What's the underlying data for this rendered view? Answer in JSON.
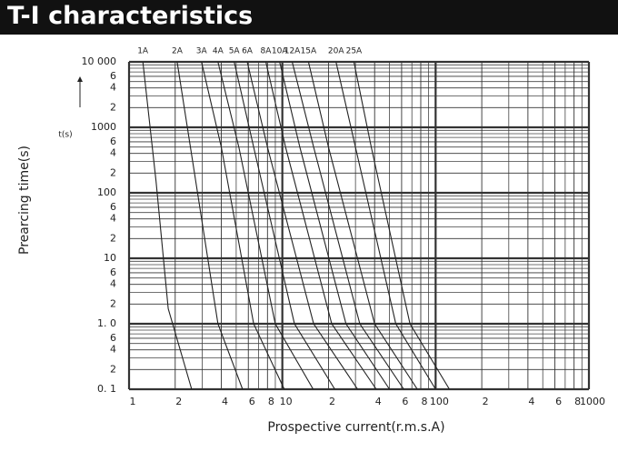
{
  "chart_data": {
    "type": "line",
    "title": "T-I characteristics",
    "y_label": "Prearcing time(s)",
    "y_unit_label": "t(s)",
    "x_label": "Prospective current(r.m.s.A)",
    "log_x": true,
    "log_y": true,
    "grid": true,
    "color": "#222222",
    "xlim": [
      1,
      1000
    ],
    "ylim": [
      0.1,
      10000
    ],
    "xticks": [
      1,
      2,
      4,
      6,
      8,
      10,
      {
        "value": 20,
        "label": "2"
      },
      {
        "value": 40,
        "label": "4"
      },
      {
        "value": 60,
        "label": "6"
      },
      {
        "value": 80,
        "label": "8"
      },
      100,
      {
        "value": 200,
        "label": "2"
      },
      {
        "value": 400,
        "label": "4"
      },
      {
        "value": 600,
        "label": "6"
      },
      {
        "value": 800,
        "label": "8"
      },
      1000
    ],
    "xminor_ticks": [
      3,
      5,
      7,
      9,
      30,
      50,
      70,
      90,
      300,
      500,
      700,
      900
    ],
    "yticks": [
      {
        "value": 10000,
        "label": "10 000"
      },
      {
        "value": 6000,
        "label": "6"
      },
      {
        "value": 4000,
        "label": "4"
      },
      {
        "value": 2000,
        "label": "2"
      },
      1000,
      {
        "value": 600,
        "label": "6"
      },
      {
        "value": 400,
        "label": "4"
      },
      {
        "value": 200,
        "label": "2"
      },
      100,
      {
        "value": 60,
        "label": "6"
      },
      {
        "value": 40,
        "label": "4"
      },
      {
        "value": 20,
        "label": "2"
      },
      10,
      6,
      4,
      2,
      {
        "value": 1,
        "label": "1. 0"
      },
      {
        "value": 0.6,
        "label": "6"
      },
      {
        "value": 0.4,
        "label": "4"
      },
      {
        "value": 0.2,
        "label": "2"
      },
      {
        "value": 0.1,
        "label": "0. 1"
      }
    ],
    "yminor_ticks": [
      9000,
      8000,
      7000,
      5000,
      3000,
      900,
      800,
      700,
      500,
      300,
      90,
      80,
      70,
      50,
      30,
      9,
      8,
      7,
      5,
      3,
      0.9,
      0.8,
      0.7,
      0.5,
      0.3
    ],
    "series": [
      {
        "name": "1A",
        "x": [
          1.23,
          1.5,
          1.8,
          2.56
        ],
        "values": [
          10000,
          150,
          1.7,
          0.1
        ]
      },
      {
        "name": "2A",
        "x": [
          2.06,
          2.6,
          3.8,
          5.5
        ],
        "values": [
          10000,
          300,
          1,
          0.1
        ]
      },
      {
        "name": "3A",
        "x": [
          2.97,
          4,
          6.5,
          10.3
        ],
        "values": [
          10000,
          500,
          1,
          0.1
        ]
      },
      {
        "name": "4A",
        "x": [
          3.8,
          5.2,
          9,
          15.9
        ],
        "values": [
          10000,
          500,
          1,
          0.1
        ]
      },
      {
        "name": "5A",
        "x": [
          4.85,
          6.5,
          12,
          22
        ],
        "values": [
          10000,
          500,
          1,
          0.1
        ]
      },
      {
        "name": "6A",
        "x": [
          5.9,
          8,
          16,
          31
        ],
        "values": [
          10000,
          500,
          1,
          0.1
        ]
      },
      {
        "name": "8A",
        "x": [
          7.8,
          10.5,
          21,
          41
        ],
        "values": [
          10000,
          500,
          1,
          0.1
        ]
      },
      {
        "name": "10A",
        "x": [
          9.6,
          13,
          26,
          50
        ],
        "values": [
          10000,
          500,
          1,
          0.1
        ]
      },
      {
        "name": "12A",
        "x": [
          11.6,
          16,
          32,
          62
        ],
        "values": [
          10000,
          500,
          1,
          0.1
        ]
      },
      {
        "name": "15A",
        "x": [
          14.8,
          20,
          40,
          76
        ],
        "values": [
          10000,
          500,
          1,
          0.1
        ]
      },
      {
        "name": "20A",
        "x": [
          22.4,
          30,
          55,
          100
        ],
        "values": [
          10000,
          500,
          1,
          0.1
        ]
      },
      {
        "name": "25A",
        "x": [
          29.3,
          38,
          68,
          123
        ],
        "values": [
          10000,
          500,
          1,
          0.1
        ]
      }
    ]
  }
}
